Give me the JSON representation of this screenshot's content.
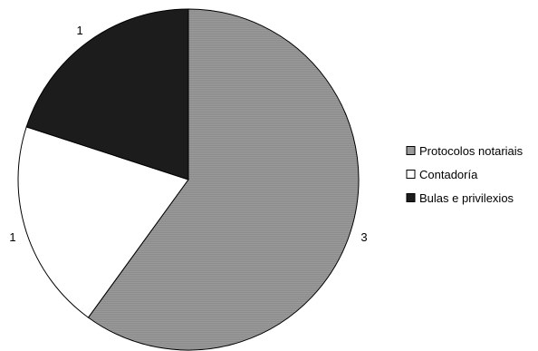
{
  "chart_data": {
    "type": "pie",
    "title": "",
    "categories": [
      "Protocolos notariais",
      "Contadoría",
      "Bulas e privilexios"
    ],
    "values": [
      3,
      1,
      1
    ],
    "data_labels": [
      "3",
      "1",
      "1"
    ],
    "colors": [
      "#9a9a9a",
      "#ffffff",
      "#1c1c1c"
    ],
    "start_angle_deg": 0,
    "direction": "clockwise",
    "legend": {
      "placement": "right",
      "entries": [
        "Protocolos notariais",
        "Contadoría",
        "Bulas e privilexios"
      ]
    }
  }
}
